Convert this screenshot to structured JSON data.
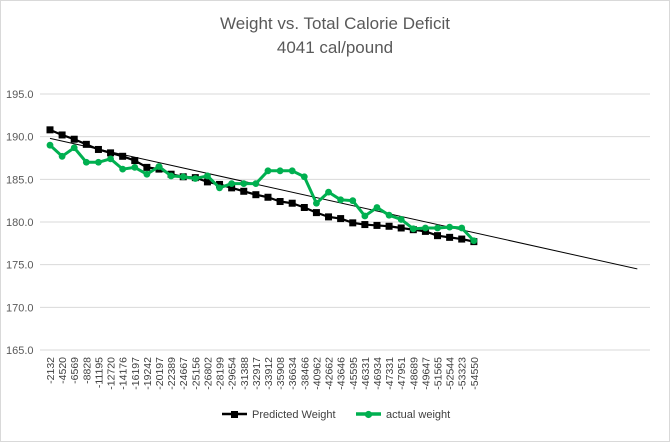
{
  "chart_data": {
    "type": "line",
    "title": "Weight vs. Total Calorie Deficit",
    "subtitle": "4041 cal/pound",
    "xlabel": "",
    "ylabel": "",
    "ylim": [
      165,
      195
    ],
    "yticks": [
      "165.0",
      "170.0",
      "175.0",
      "180.0",
      "185.0",
      "190.0",
      "195.0"
    ],
    "grid": true,
    "legend_position": "bottom",
    "categories": [
      "-2132",
      "-4520",
      "-6569",
      "-8828",
      "-11195",
      "-12720",
      "-14176",
      "-16197",
      "-19242",
      "-20197",
      "-22389",
      "-24667",
      "-25156",
      "-26802",
      "-28199",
      "-29654",
      "-31388",
      "-32917",
      "-33912",
      "-35908",
      "-36634",
      "-38466",
      "-40962",
      "-42662",
      "-43646",
      "-45595",
      "-46331",
      "-46934",
      "-47331",
      "-47951",
      "-48689",
      "-49647",
      "-51565",
      "-52544",
      "-53323",
      "-54550"
    ],
    "category_labels": [
      "-2132",
      "-4520",
      "-6569",
      "-8828",
      "-11195",
      "-12720",
      "-14176",
      "-16197",
      "-19242",
      "-20197",
      "-22389",
      "-24667",
      "-25156",
      "-26802",
      "-28199",
      "-29654",
      "-31388",
      "-32917",
      "-33912",
      "-35908",
      "-36634",
      "-38466",
      "-40962",
      "-42662",
      "-43646",
      "-45595",
      "-46331",
      "-46934",
      "-47331",
      "-47951",
      "-48689",
      "-49647",
      "-51565",
      "-52544",
      "-53323",
      "-54550"
    ],
    "series": [
      {
        "name": "Predicted Weight",
        "color": "#000000",
        "marker": "square",
        "values": [
          190.8,
          190.2,
          189.7,
          189.1,
          188.5,
          188.1,
          187.7,
          187.2,
          186.4,
          186.2,
          185.6,
          185.3,
          185.2,
          184.7,
          184.4,
          184.0,
          183.6,
          183.2,
          182.9,
          182.4,
          182.2,
          181.7,
          181.1,
          180.6,
          180.4,
          179.9,
          179.7,
          179.6,
          179.5,
          179.3,
          179.1,
          178.9,
          178.4,
          178.2,
          178.0,
          177.7
        ]
      },
      {
        "name": "actual weight",
        "color": "#00b050",
        "marker": "circle",
        "values": [
          189.0,
          187.7,
          188.7,
          187.0,
          187.0,
          187.4,
          186.2,
          186.4,
          185.6,
          186.5,
          185.4,
          185.3,
          185.1,
          185.4,
          184.0,
          184.5,
          184.5,
          184.5,
          186.0,
          186.0,
          186.0,
          185.3,
          182.2,
          183.5,
          182.6,
          182.5,
          180.7,
          181.7,
          180.8,
          180.3,
          179.2,
          179.3,
          179.3,
          179.4,
          179.3,
          177.8
        ]
      }
    ],
    "trendline": {
      "color": "#000000",
      "from": {
        "x": 1,
        "y": 189.8
      },
      "to": {
        "x": 49.5,
        "y": 174.5
      }
    }
  }
}
